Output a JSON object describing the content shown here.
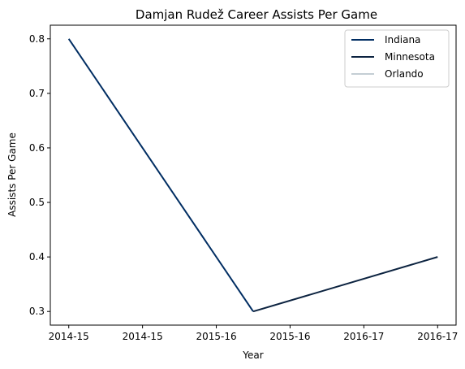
{
  "chart_data": {
    "type": "line",
    "title": "Damjan Rudež Career Assists Per Game",
    "xlabel": "Year",
    "ylabel": "Assists Per Game",
    "x_ticks": [
      "2014-15",
      "2014-15",
      "2015-16",
      "2015-16",
      "2016-17",
      "2016-17"
    ],
    "x_range": [
      -0.1,
      2.1
    ],
    "ylim": [
      0.275,
      0.825
    ],
    "y_ticks": [
      0.3,
      0.4,
      0.5,
      0.6,
      0.7,
      0.8
    ],
    "y_tick_labels": [
      "0.3",
      "0.4",
      "0.5",
      "0.6",
      "0.7",
      "0.8"
    ],
    "legend_position": "top-right",
    "series": [
      {
        "name": "Indiana",
        "color": "#002D62",
        "x": [
          0,
          1
        ],
        "values": [
          0.8,
          0.3
        ]
      },
      {
        "name": "Minnesota",
        "color": "#0C2340",
        "x": [
          1,
          2
        ],
        "values": [
          0.3,
          0.4
        ]
      },
      {
        "name": "Orlando",
        "color": "#C4CED4",
        "x": [],
        "values": []
      }
    ]
  }
}
